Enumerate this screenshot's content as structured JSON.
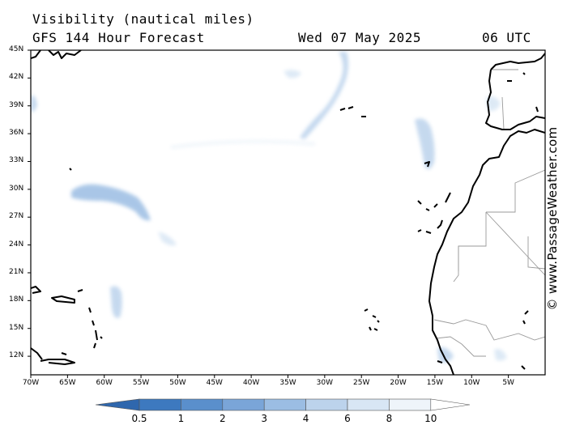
{
  "header": {
    "title": "Visibility (nautical miles)",
    "model": "GFS 144 Hour Forecast",
    "date": "Wed 07 May 2025",
    "hour": "06 UTC"
  },
  "map": {
    "projection": "equirectangular",
    "lon_range": [
      -70,
      0
    ],
    "lat_range": [
      10,
      45
    ],
    "lat_ticks": [
      {
        "value": 45,
        "label": "45N"
      },
      {
        "value": 42,
        "label": "42N"
      },
      {
        "value": 39,
        "label": "39N"
      },
      {
        "value": 36,
        "label": "36N"
      },
      {
        "value": 33,
        "label": "33N"
      },
      {
        "value": 30,
        "label": "30N"
      },
      {
        "value": 27,
        "label": "27N"
      },
      {
        "value": 24,
        "label": "24N"
      },
      {
        "value": 21,
        "label": "21N"
      },
      {
        "value": 18,
        "label": "18N"
      },
      {
        "value": 15,
        "label": "15N"
      },
      {
        "value": 12,
        "label": "12N"
      }
    ],
    "lon_ticks": [
      {
        "value": -70,
        "label": "70W"
      },
      {
        "value": -65,
        "label": "65W"
      },
      {
        "value": -60,
        "label": "60W"
      },
      {
        "value": -55,
        "label": "55W"
      },
      {
        "value": -50,
        "label": "50W"
      },
      {
        "value": -45,
        "label": "45W"
      },
      {
        "value": -40,
        "label": "40W"
      },
      {
        "value": -35,
        "label": "35W"
      },
      {
        "value": -30,
        "label": "30W"
      },
      {
        "value": -25,
        "label": "25W"
      },
      {
        "value": -20,
        "label": "20W"
      },
      {
        "value": -15,
        "label": "15W"
      },
      {
        "value": -10,
        "label": "10W"
      },
      {
        "value": -5,
        "label": "5W"
      }
    ],
    "coastline_color": "#000000",
    "border_color": "#9a9a9a",
    "reduced_visibility_areas": [
      {
        "region": "central Atlantic ridge (35W-30W, 37N-45N)",
        "visibility_nm": 6
      },
      {
        "region": "west of Bermuda latitude (65W-55W, 27N-31N)",
        "visibility_nm": 4
      },
      {
        "region": "Lesser Antilles east (60W-58W, 15N-20N)",
        "visibility_nm": 6
      },
      {
        "region": "Azores-Madeira (20W-17W, 32N-38N)",
        "visibility_nm": 6
      },
      {
        "region": "Iberia and West Africa coast",
        "visibility_nm": 8
      }
    ]
  },
  "colorbar": {
    "labels": [
      "0.5",
      "1",
      "2",
      "3",
      "4",
      "6",
      "8",
      "10"
    ],
    "colors": [
      "#3d79bf",
      "#5a8fcc",
      "#7aa5d8",
      "#9bbde3",
      "#bcd3ec",
      "#d8e6f4",
      "#eef4fa"
    ]
  },
  "credit": "© www.PassageWeather.com"
}
